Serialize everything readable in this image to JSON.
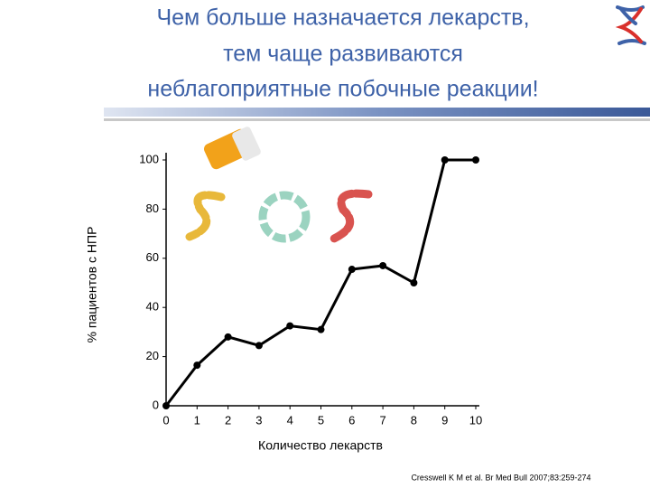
{
  "slide": {
    "title_lines": [
      "Чем больше назначается лекарств,",
      "тем чаще развиваются",
      "неблагоприятные побочные реакции!"
    ],
    "citation": "Cresswell K M et al. Br Med Bull 2007;83:259-274"
  },
  "chart_data": {
    "type": "line",
    "x_label": "Количество лекарств",
    "y_label": "% пациентов с НПР",
    "x": [
      0,
      1,
      2,
      3,
      4,
      5,
      6,
      7,
      8,
      9,
      10
    ],
    "values": [
      0,
      16.5,
      28,
      24.5,
      32.5,
      31,
      55.5,
      57,
      50,
      100,
      100
    ],
    "color": "#000000",
    "xlim": [
      0,
      10
    ],
    "xticks": [
      0,
      1,
      2,
      3,
      4,
      5,
      6,
      7,
      8,
      9,
      10
    ],
    "ylim": [
      0,
      100
    ],
    "yticks": [
      0,
      20,
      40,
      60,
      80,
      100
    ],
    "grid": false
  }
}
